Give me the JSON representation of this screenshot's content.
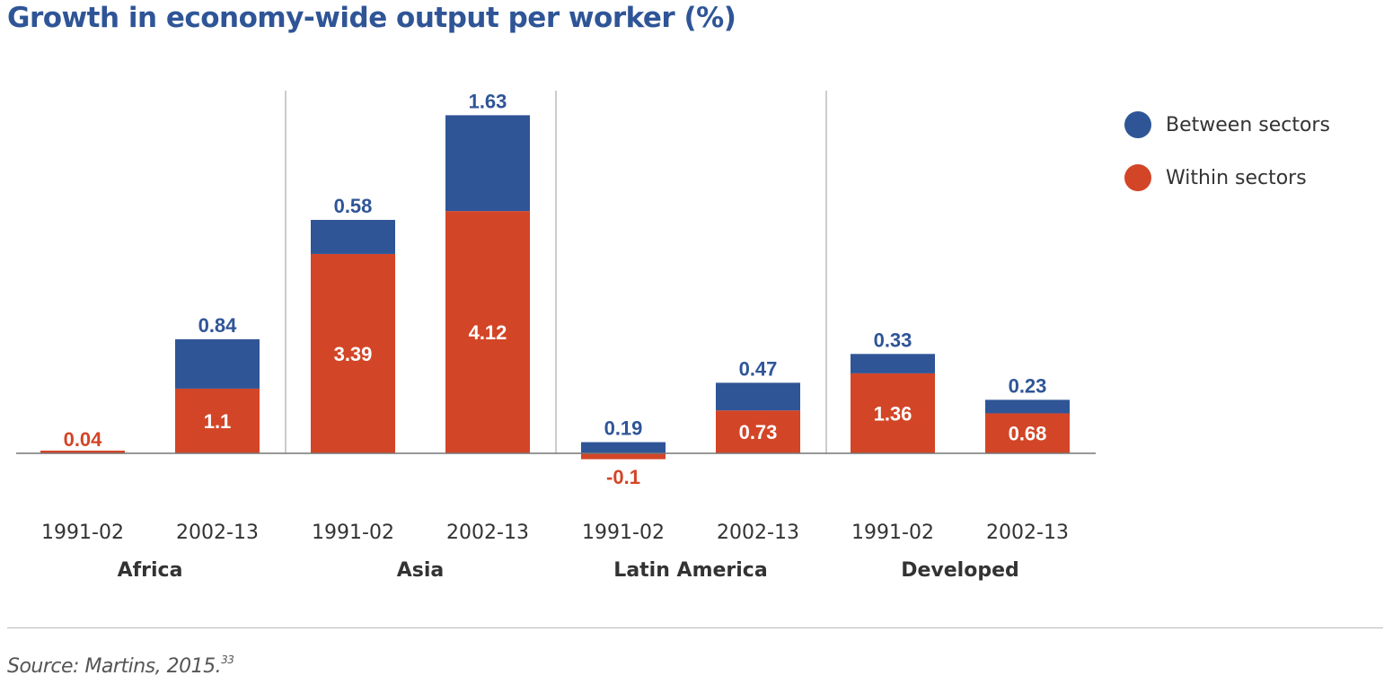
{
  "colors": {
    "between": "#2f5597",
    "within": "#d34527",
    "axis": "#777777",
    "divider": "#999999"
  },
  "legend": [
    {
      "key": "between",
      "label": "Between sectors"
    },
    {
      "key": "within",
      "label": "Within sectors"
    }
  ],
  "source": {
    "text": "Source: Martins, 2015.",
    "note": "33"
  },
  "chart_data": {
    "type": "bar",
    "stacked": true,
    "title": "Growth in economy-wide output per worker (%)",
    "groups": [
      "Africa",
      "Asia",
      "Latin America",
      "Developed"
    ],
    "categories": [
      "1991-02",
      "2002-13",
      "1991-02",
      "2002-13",
      "1991-02",
      "2002-13",
      "1991-02",
      "2002-13"
    ],
    "series": [
      {
        "name": "Within sectors",
        "key": "within",
        "values": [
          0.04,
          1.1,
          3.39,
          4.12,
          -0.1,
          0.73,
          1.36,
          0.68
        ]
      },
      {
        "name": "Between sectors",
        "key": "between",
        "values": [
          0,
          0.84,
          0.58,
          1.63,
          0.19,
          0.47,
          0.33,
          0.23
        ]
      }
    ],
    "value_labels": {
      "within": [
        "0.04",
        "1.1",
        "3.39",
        "4.12",
        "-0.1",
        "0.73",
        "1.36",
        "0.68"
      ],
      "between": [
        "",
        "0.84",
        "0.58",
        "1.63",
        "0.19",
        "0.47",
        "0.33",
        "0.23"
      ]
    },
    "ylim": [
      -0.25,
      6.1
    ],
    "grid": false,
    "legend_position": "top-right"
  }
}
